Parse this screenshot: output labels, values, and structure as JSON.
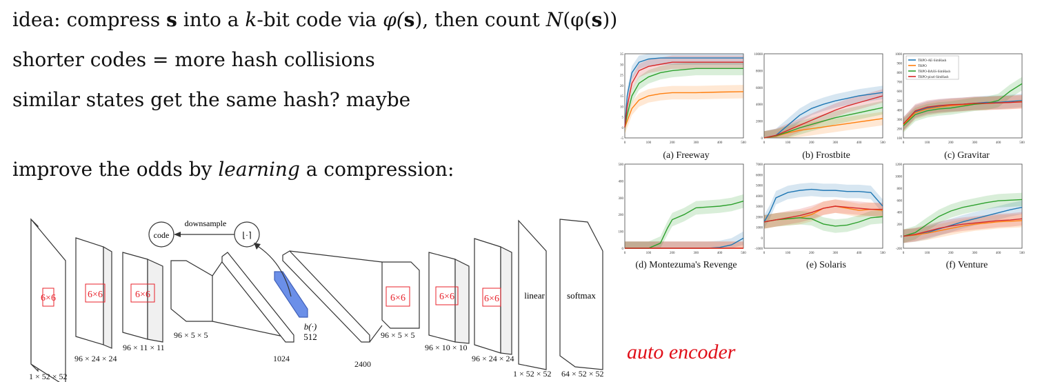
{
  "text_lines": {
    "line1_a": "idea: compress ",
    "line1_s": "s",
    "line1_b": " into a ",
    "line1_k": "k",
    "line1_c": "-bit code via ",
    "line1_phi": "φ(",
    "line1_s2": "s",
    "line1_d": "), then count ",
    "line1_N": "N",
    "line1_e": "(φ(",
    "line1_s3": "s",
    "line1_f": "))",
    "line2": "shorter codes = more hash collisions",
    "line3": "similar states get the same hash? maybe",
    "line4_a": "improve the odds by ",
    "line4_i": "learning",
    "line4_b": " a compression:"
  },
  "diagram": {
    "code_label": "code",
    "downsample_label": "downsample",
    "round_label": "⌊·⌉",
    "b_label": "b(·)",
    "b_size": "512",
    "kernel_label": "6×6",
    "linear_label": "linear",
    "softmax_label": "softmax",
    "dims": {
      "d1": "1 × 52 × 52",
      "d2": "96 × 24 × 24",
      "d3": "96 × 11 × 11",
      "d4": "96 × 5 × 5",
      "d5": "1024",
      "d6": "2400",
      "d7": "96 × 5 × 5",
      "d8": "96 × 10 × 10",
      "d9": "96 × 24 × 24",
      "d10": "1 × 52 × 52",
      "d11": "64 × 52 × 52"
    }
  },
  "handwriting": "auto encoder",
  "legend": [
    "TRPO-AE-SimHash",
    "TRPO",
    "TRPO-BASS-SimHash",
    "TRPO-pixel-SimHash"
  ],
  "colors": {
    "ae": "#1f77b4",
    "trpo": "#ff7f0e",
    "bass": "#2ca02c",
    "pixel": "#d62728",
    "kernel": "#e8212a",
    "code_layer": "#6b8fe8",
    "hand": "#e0101a"
  },
  "chart_data": [
    {
      "type": "line",
      "title": "(a) Freeway",
      "xlim": [
        0,
        500
      ],
      "ylim": [
        -5,
        35
      ],
      "xticks": [
        "0",
        "100",
        "200",
        "300",
        "400",
        "500"
      ],
      "yticks": [
        "-5",
        "0",
        "5",
        "10",
        "15",
        "20",
        "25",
        "30",
        "35"
      ],
      "x": [
        0,
        10,
        30,
        60,
        100,
        150,
        200,
        300,
        400,
        500
      ],
      "series": [
        {
          "name": "TRPO-AE-SimHash",
          "values": [
            0,
            15,
            26,
            31,
            32.5,
            33,
            33,
            33,
            33,
            33
          ]
        },
        {
          "name": "TRPO",
          "values": [
            0,
            3,
            9,
            13,
            15,
            16,
            16.5,
            16.5,
            16.8,
            17
          ]
        },
        {
          "name": "TRPO-BASS-SimHash",
          "values": [
            0,
            6,
            15,
            21,
            24,
            26,
            27,
            28,
            28,
            28
          ]
        },
        {
          "name": "TRPO-pixel-SimHash",
          "values": [
            0,
            10,
            21,
            27,
            29,
            30,
            31,
            31,
            31,
            31
          ]
        }
      ]
    },
    {
      "type": "line",
      "title": "(b) Frostbite",
      "xlim": [
        0,
        500
      ],
      "ylim": [
        0,
        10000
      ],
      "xticks": [
        "0",
        "100",
        "200",
        "300",
        "400",
        "500"
      ],
      "yticks": [
        "0",
        "2000",
        "4000",
        "6000",
        "8000",
        "10000"
      ],
      "x": [
        0,
        50,
        100,
        150,
        200,
        250,
        300,
        350,
        400,
        450,
        500
      ],
      "series": [
        {
          "name": "TRPO-AE-SimHash",
          "values": [
            0,
            300,
            1500,
            2700,
            3500,
            4000,
            4400,
            4700,
            5000,
            5200,
            5400
          ]
        },
        {
          "name": "TRPO",
          "values": [
            0,
            200,
            600,
            900,
            1100,
            1300,
            1500,
            1700,
            1900,
            2100,
            2300
          ]
        },
        {
          "name": "TRPO-BASS-SimHash",
          "values": [
            0,
            250,
            700,
            1200,
            1600,
            2000,
            2400,
            2700,
            3000,
            3300,
            3600
          ]
        },
        {
          "name": "TRPO-pixel-SimHash",
          "values": [
            0,
            300,
            900,
            1500,
            2100,
            2700,
            3300,
            3800,
            4200,
            4600,
            5000
          ]
        }
      ]
    },
    {
      "type": "line",
      "title": "(c) Gravitar",
      "xlim": [
        0,
        500
      ],
      "ylim": [
        100,
        1000
      ],
      "xticks": [
        "0",
        "100",
        "200",
        "300",
        "400",
        "500"
      ],
      "yticks": [
        "100",
        "200",
        "300",
        "400",
        "500",
        "600",
        "700",
        "800",
        "900",
        "1000"
      ],
      "x": [
        0,
        50,
        100,
        150,
        200,
        250,
        300,
        350,
        400,
        450,
        500
      ],
      "series": [
        {
          "name": "TRPO-AE-SimHash",
          "values": [
            250,
            380,
            420,
            440,
            450,
            460,
            470,
            480,
            480,
            490,
            500
          ]
        },
        {
          "name": "TRPO",
          "values": [
            240,
            370,
            410,
            430,
            445,
            455,
            465,
            470,
            475,
            480,
            490
          ]
        },
        {
          "name": "TRPO-BASS-SimHash",
          "values": [
            230,
            350,
            390,
            410,
            420,
            440,
            460,
            470,
            500,
            600,
            680
          ]
        },
        {
          "name": "TRPO-pixel-SimHash",
          "values": [
            250,
            390,
            430,
            445,
            455,
            460,
            470,
            470,
            475,
            480,
            485
          ]
        }
      ]
    },
    {
      "type": "line",
      "title": "(d) Montezuma's Revenge",
      "xlim": [
        0,
        500
      ],
      "ylim": [
        0,
        500
      ],
      "xticks": [
        "0",
        "100",
        "200",
        "300",
        "400",
        "500"
      ],
      "yticks": [
        "0",
        "100",
        "200",
        "300",
        "400",
        "500"
      ],
      "x": [
        0,
        100,
        150,
        180,
        200,
        250,
        300,
        350,
        400,
        450,
        500
      ],
      "series": [
        {
          "name": "TRPO-AE-SimHash",
          "values": [
            0,
            0,
            0,
            0,
            0,
            0,
            0,
            0,
            5,
            20,
            60
          ]
        },
        {
          "name": "TRPO",
          "values": [
            0,
            0,
            0,
            0,
            0,
            0,
            0,
            0,
            0,
            0,
            0
          ]
        },
        {
          "name": "TRPO-BASS-SimHash",
          "values": [
            0,
            0,
            30,
            120,
            170,
            200,
            240,
            245,
            250,
            260,
            280
          ]
        },
        {
          "name": "TRPO-pixel-SimHash",
          "values": [
            0,
            0,
            0,
            0,
            0,
            0,
            0,
            0,
            0,
            0,
            0
          ]
        }
      ]
    },
    {
      "type": "line",
      "title": "(e) Solaris",
      "xlim": [
        0,
        500
      ],
      "ylim": [
        -1000,
        7000
      ],
      "xticks": [
        "0",
        "100",
        "200",
        "300",
        "400",
        "500"
      ],
      "yticks": [
        "-1000",
        "0",
        "1000",
        "2000",
        "3000",
        "4000",
        "5000",
        "6000",
        "7000"
      ],
      "x": [
        0,
        25,
        50,
        100,
        150,
        200,
        250,
        300,
        350,
        400,
        450,
        500
      ],
      "series": [
        {
          "name": "TRPO-AE-SimHash",
          "values": [
            1500,
            2500,
            3800,
            4300,
            4500,
            4600,
            4500,
            4500,
            4400,
            4400,
            4300,
            3000
          ]
        },
        {
          "name": "TRPO",
          "values": [
            1500,
            1600,
            1700,
            1800,
            1900,
            2200,
            2800,
            3000,
            2800,
            2600,
            2700,
            2600
          ]
        },
        {
          "name": "TRPO-BASS-SimHash",
          "values": [
            1500,
            1600,
            1700,
            1800,
            1900,
            1800,
            1300,
            1100,
            1200,
            1500,
            1900,
            2000
          ]
        },
        {
          "name": "TRPO-pixel-SimHash",
          "values": [
            1500,
            1600,
            1700,
            1900,
            2100,
            2400,
            2800,
            3000,
            2900,
            2800,
            2700,
            2700
          ]
        }
      ]
    },
    {
      "type": "line",
      "title": "(f) Venture",
      "xlim": [
        0,
        500
      ],
      "ylim": [
        -200,
        1200
      ],
      "xticks": [
        "0",
        "100",
        "200",
        "300",
        "400",
        "500"
      ],
      "yticks": [
        "-200",
        "0",
        "200",
        "400",
        "600",
        "800",
        "1000",
        "1200"
      ],
      "x": [
        0,
        50,
        100,
        150,
        200,
        250,
        300,
        350,
        400,
        450,
        500
      ],
      "series": [
        {
          "name": "TRPO-AE-SimHash",
          "values": [
            0,
            20,
            60,
            120,
            180,
            240,
            290,
            340,
            390,
            440,
            480
          ]
        },
        {
          "name": "TRPO",
          "values": [
            0,
            20,
            50,
            90,
            130,
            170,
            200,
            220,
            240,
            250,
            260
          ]
        },
        {
          "name": "TRPO-BASS-SimHash",
          "values": [
            0,
            60,
            200,
            330,
            420,
            480,
            520,
            560,
            590,
            600,
            610
          ]
        },
        {
          "name": "TRPO-pixel-SimHash",
          "values": [
            0,
            30,
            80,
            130,
            170,
            200,
            220,
            240,
            260,
            270,
            290
          ]
        }
      ]
    }
  ]
}
